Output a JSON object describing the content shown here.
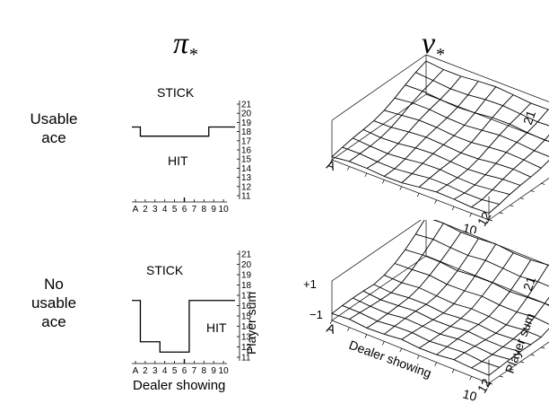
{
  "titles": {
    "policy": "π",
    "policy_sub": "*",
    "value": "v",
    "value_sub": "*"
  },
  "rows": [
    {
      "label_lines": [
        "Usable",
        "ace"
      ],
      "stick_label": "STICK",
      "hit_label": "HIT",
      "sum_ticks": [
        "11",
        "12",
        "13",
        "14",
        "15",
        "16",
        "17",
        "18",
        "19",
        "20",
        "21"
      ],
      "dealer_ticks": [
        "A",
        "2",
        "3",
        "4",
        "5",
        "6",
        "7",
        "8",
        "9",
        "10"
      ],
      "policy_threshold": [
        19,
        18,
        18,
        18,
        18,
        18,
        18,
        18,
        19,
        19
      ]
    },
    {
      "label_lines": [
        "No",
        "usable",
        "ace"
      ],
      "stick_label": "STICK",
      "hit_label": "HIT",
      "sum_ticks": [
        "11",
        "12",
        "13",
        "14",
        "15",
        "16",
        "17",
        "18",
        "19",
        "20",
        "21"
      ],
      "dealer_ticks": [
        "A",
        "2",
        "3",
        "4",
        "5",
        "6",
        "7",
        "8",
        "9",
        "10"
      ],
      "policy_threshold": [
        17,
        13,
        13,
        12,
        12,
        12,
        17,
        17,
        17,
        17
      ]
    }
  ],
  "axes": {
    "player_sum": "Player sum",
    "dealer_showing": "Dealer showing",
    "value_z_top": "+1",
    "value_z_bottom": "−1",
    "corner_dealer": "A",
    "corner_dealer_end": "10",
    "corner_sum_low": "12",
    "corner_sum_high": "21"
  }
}
